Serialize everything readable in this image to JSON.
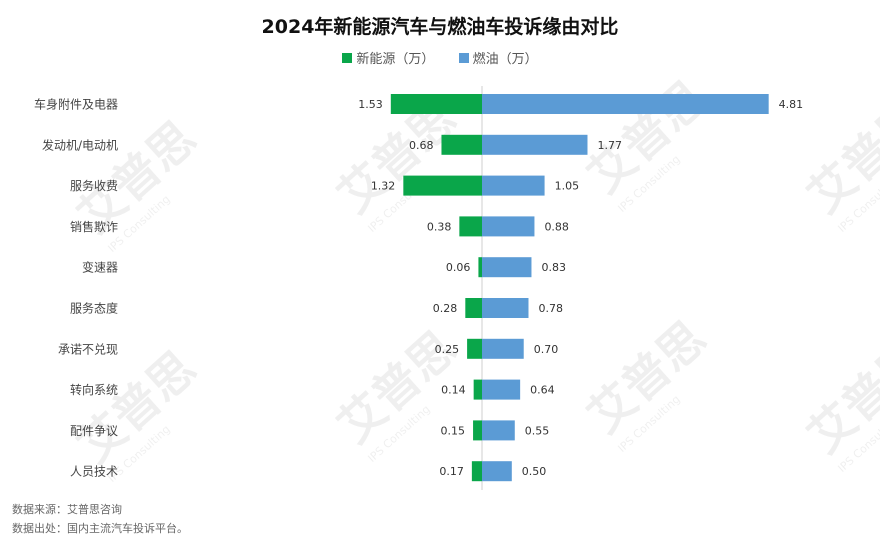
{
  "chart_data": {
    "type": "bar",
    "orientation": "horizontal-diverging",
    "title": "2024年新能源汽车与燃油车投诉缘由对比",
    "categories": [
      "车身附件及电器",
      "发动机/电动机",
      "服务收费",
      "销售欺诈",
      "变速器",
      "服务态度",
      "承诺不兑现",
      "转向系统",
      "配件争议",
      "人员技术"
    ],
    "series": [
      {
        "name": "新能源（万）",
        "color": "#0aa64a",
        "direction": "left",
        "values": [
          1.53,
          0.68,
          1.32,
          0.38,
          0.06,
          0.28,
          0.25,
          0.14,
          0.15,
          0.17
        ],
        "labels": [
          "1.53",
          "0.68",
          "1.32",
          "0.38",
          "0.06",
          "0.28",
          "0.25",
          "0.14",
          "0.15",
          "0.17"
        ]
      },
      {
        "name": "燃油（万）",
        "color": "#5b9bd5",
        "direction": "right",
        "values": [
          4.81,
          1.77,
          1.05,
          0.88,
          0.83,
          0.78,
          0.7,
          0.64,
          0.55,
          0.5
        ],
        "labels": [
          "4.81",
          "1.77",
          "1.05",
          "0.88",
          "0.83",
          "0.78",
          "0.70",
          "0.64",
          "0.55",
          "0.50"
        ]
      }
    ],
    "legend": "top-center",
    "grid": false
  },
  "footer": {
    "source": "数据来源：艾普思咨询",
    "origin": "数据出处：国内主流汽车投诉平台。"
  },
  "watermark": {
    "logo": "艾普思",
    "text": "IPS Consulting"
  }
}
